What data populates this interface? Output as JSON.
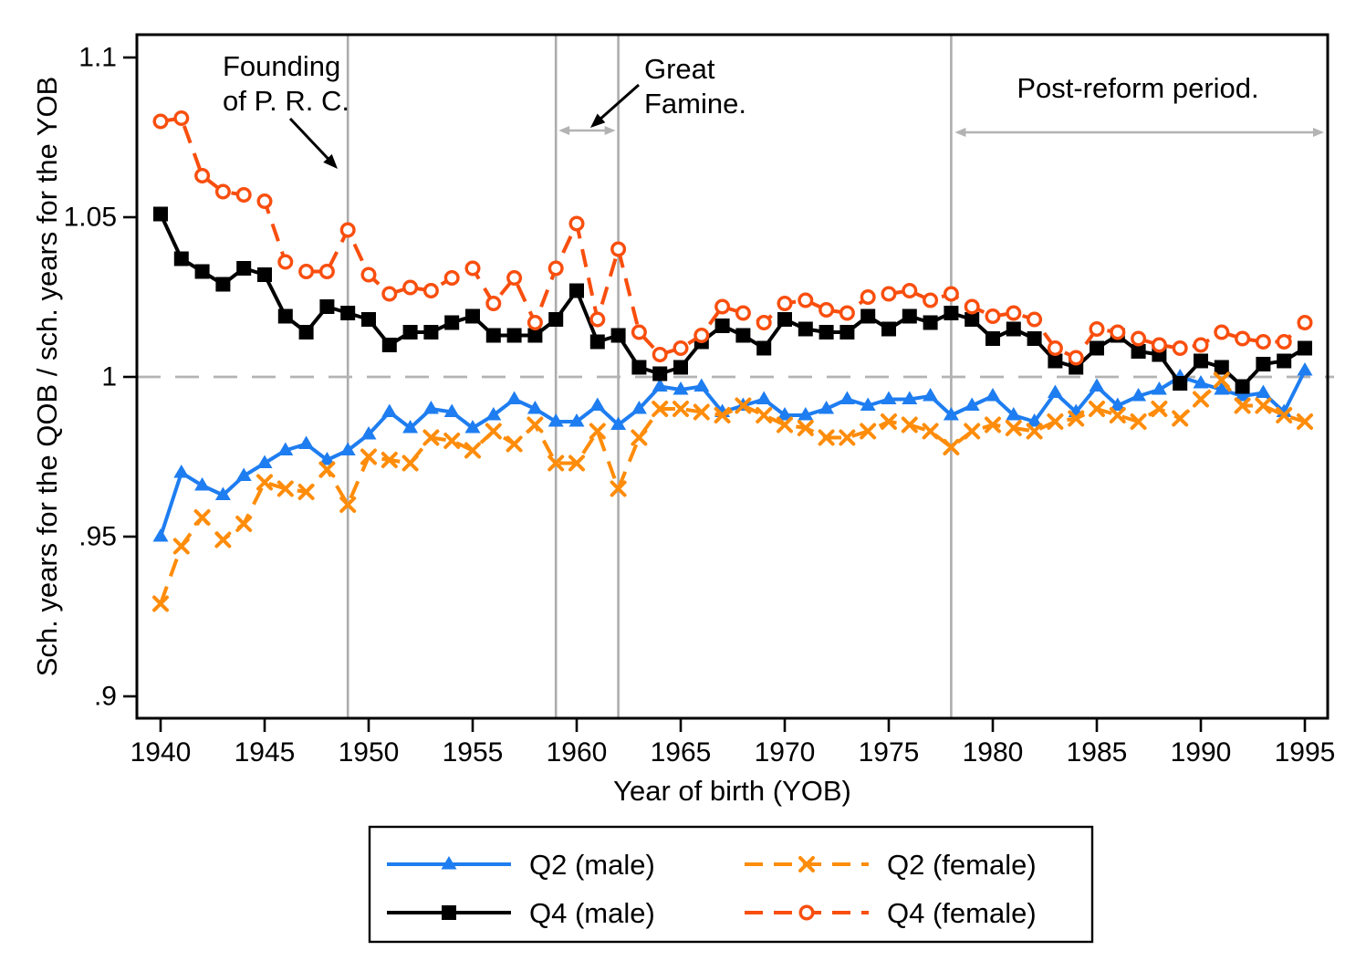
{
  "chart_data": {
    "type": "line",
    "title": "",
    "xlabel": "Year of birth (YOB)",
    "ylabel": "Sch. years for the QOB / sch. years for the YOB",
    "x_tick_labels": [
      "1940",
      "1945",
      "1950",
      "1955",
      "1960",
      "1965",
      "1970",
      "1975",
      "1980",
      "1985",
      "1990",
      "1995"
    ],
    "x_ticks": [
      1940,
      1945,
      1950,
      1955,
      1960,
      1965,
      1970,
      1975,
      1980,
      1985,
      1990,
      1995
    ],
    "y_tick_labels": [
      "1.1",
      "1.05",
      "1",
      ".95",
      ".9"
    ],
    "y_ticks": [
      1.1,
      1.05,
      1.0,
      0.95,
      0.9
    ],
    "xlim": [
      1938.8,
      1996.1
    ],
    "ylim": [
      0.893,
      1.107
    ],
    "grid": "off",
    "reference_line": 1.0,
    "event_line_years": [
      1949,
      1959,
      1962,
      1978
    ],
    "years": [
      1940,
      1941,
      1942,
      1943,
      1944,
      1945,
      1946,
      1947,
      1948,
      1949,
      1950,
      1951,
      1952,
      1953,
      1954,
      1955,
      1956,
      1957,
      1958,
      1959,
      1960,
      1961,
      1962,
      1963,
      1964,
      1965,
      1966,
      1967,
      1968,
      1969,
      1970,
      1971,
      1972,
      1973,
      1974,
      1975,
      1976,
      1977,
      1978,
      1979,
      1980,
      1981,
      1982,
      1983,
      1984,
      1985,
      1986,
      1987,
      1988,
      1989,
      1990,
      1991,
      1992,
      1993,
      1994,
      1995
    ],
    "series": [
      {
        "name": "Q2 (male)",
        "color": "#1e7df0",
        "dash": false,
        "marker": "triangle",
        "values": [
          0.95,
          0.97,
          0.966,
          0.963,
          0.969,
          0.973,
          0.977,
          0.979,
          0.974,
          0.977,
          0.982,
          0.989,
          0.984,
          0.99,
          0.989,
          0.984,
          0.988,
          0.993,
          0.99,
          0.986,
          0.986,
          0.991,
          0.985,
          0.99,
          0.997,
          0.996,
          0.997,
          0.989,
          0.991,
          0.993,
          0.988,
          0.988,
          0.99,
          0.993,
          0.991,
          0.993,
          0.993,
          0.994,
          0.988,
          0.991,
          0.994,
          0.988,
          0.986,
          0.995,
          0.989,
          0.997,
          0.991,
          0.994,
          0.996,
          1.0,
          0.998,
          0.996,
          0.994,
          0.995,
          0.989,
          1.002
        ]
      },
      {
        "name": "Q2 (female)",
        "color": "#ff8c0a",
        "dash": true,
        "marker": "x",
        "values": [
          0.929,
          0.947,
          0.956,
          0.949,
          0.954,
          0.967,
          0.965,
          0.964,
          0.971,
          0.96,
          0.975,
          0.974,
          0.973,
          0.981,
          0.98,
          0.977,
          0.983,
          0.979,
          0.985,
          0.973,
          0.973,
          0.983,
          0.965,
          0.981,
          0.99,
          0.99,
          0.989,
          0.988,
          0.991,
          0.988,
          0.985,
          0.984,
          0.981,
          0.981,
          0.983,
          0.986,
          0.985,
          0.983,
          0.978,
          0.983,
          0.985,
          0.984,
          0.983,
          0.986,
          0.987,
          0.99,
          0.988,
          0.986,
          0.99,
          0.987,
          0.993,
          0.999,
          0.991,
          0.991,
          0.988,
          0.986
        ]
      },
      {
        "name": "Q4 (male)",
        "color": "#000000",
        "dash": false,
        "marker": "square",
        "values": [
          1.051,
          1.037,
          1.033,
          1.029,
          1.034,
          1.032,
          1.019,
          1.014,
          1.022,
          1.02,
          1.018,
          1.01,
          1.014,
          1.014,
          1.017,
          1.019,
          1.013,
          1.013,
          1.013,
          1.018,
          1.027,
          1.011,
          1.013,
          1.003,
          1.001,
          1.003,
          1.011,
          1.016,
          1.013,
          1.009,
          1.018,
          1.015,
          1.014,
          1.014,
          1.019,
          1.015,
          1.019,
          1.017,
          1.02,
          1.018,
          1.012,
          1.015,
          1.012,
          1.005,
          1.003,
          1.009,
          1.013,
          1.008,
          1.007,
          0.998,
          1.005,
          1.003,
          0.997,
          1.004,
          1.005,
          1.009
        ]
      },
      {
        "name": "Q4 (female)",
        "color": "#f94e0e",
        "dash": true,
        "marker": "circle",
        "values": [
          1.08,
          1.081,
          1.063,
          1.058,
          1.057,
          1.055,
          1.036,
          1.033,
          1.033,
          1.046,
          1.032,
          1.026,
          1.028,
          1.027,
          1.031,
          1.034,
          1.023,
          1.031,
          1.017,
          1.034,
          1.048,
          1.018,
          1.04,
          1.014,
          1.007,
          1.009,
          1.013,
          1.022,
          1.02,
          1.017,
          1.023,
          1.024,
          1.021,
          1.02,
          1.025,
          1.026,
          1.027,
          1.024,
          1.026,
          1.022,
          1.019,
          1.02,
          1.018,
          1.009,
          1.006,
          1.015,
          1.014,
          1.012,
          1.01,
          1.009,
          1.01,
          1.014,
          1.012,
          1.011,
          1.011,
          1.017
        ]
      }
    ],
    "annotations": [
      {
        "id": "founding",
        "text_lines": [
          "Founding",
          "of P. R. C."
        ],
        "target_year": 1949
      },
      {
        "id": "famine",
        "text_lines": [
          "Great",
          "Famine."
        ],
        "span_years": [
          1959,
          1962
        ]
      },
      {
        "id": "post_reform",
        "text_lines": [
          "Post-reform period."
        ],
        "span_years": [
          1978,
          1996
        ]
      }
    ],
    "legend_position": "bottom",
    "colors": {
      "axis": "#000000",
      "event_line": "#adadad",
      "reference_dash": "#b3b3b3",
      "span_arrow": "#b3b3b3",
      "background": "#ffffff"
    }
  }
}
